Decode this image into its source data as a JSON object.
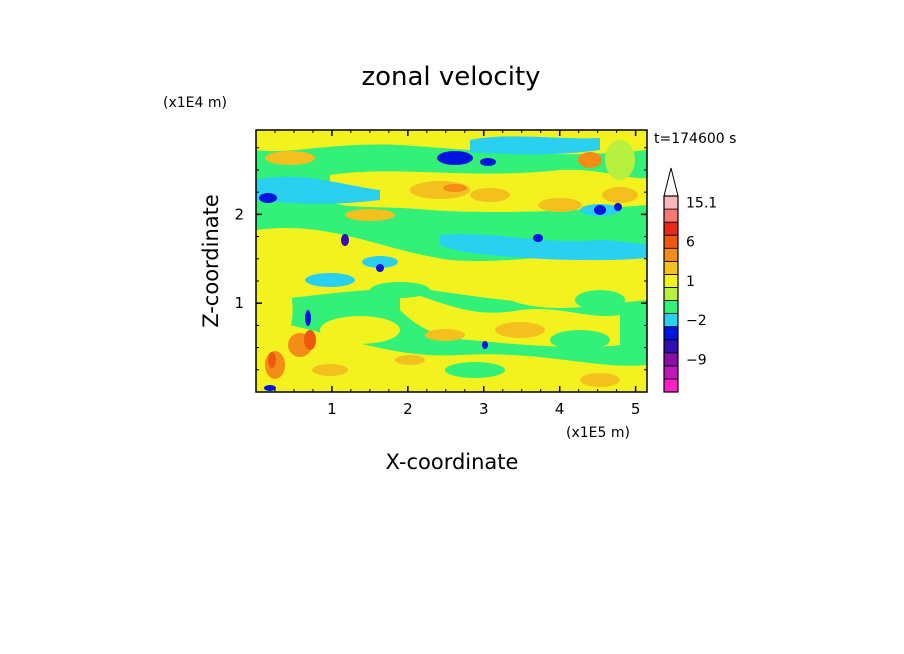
{
  "chart_data": {
    "type": "heatmap",
    "title": "zonal velocity",
    "xlabel": "X-coordinate",
    "ylabel": "Z-coordinate",
    "x_scale_label": "(x1E5 m)",
    "y_scale_label": "(x1E4 m)",
    "time_label": "t=174600 s",
    "xlim": [
      0,
      5.15
    ],
    "ylim": [
      0,
      2.95
    ],
    "x_ticks": [
      1,
      2,
      3,
      4,
      5
    ],
    "y_ticks": [
      1,
      2
    ],
    "colorbar": {
      "levels": [
        -15,
        -12,
        -9,
        -6,
        -3,
        -2,
        -1,
        0,
        1,
        2,
        3,
        6,
        9,
        12,
        15.1
      ],
      "colors": [
        "#ff1fc8",
        "#bf18b8",
        "#8a0ea8",
        "#3010b0",
        "#0014e0",
        "#2ad0f0",
        "#32f078",
        "#b8f040",
        "#f4f21e",
        "#f4c01e",
        "#f48c18",
        "#f05810",
        "#e82818",
        "#f87878",
        "#f8b8b8"
      ],
      "labels": [
        {
          "value": 15.1,
          "text": "15.1"
        },
        {
          "value": 6,
          "text": "6"
        },
        {
          "value": 1,
          "text": "1"
        },
        {
          "value": -2,
          "text": "−2"
        },
        {
          "value": -9,
          "text": "−9"
        }
      ],
      "extend_top": true
    },
    "grid": false,
    "legend": "colorbar-right"
  }
}
